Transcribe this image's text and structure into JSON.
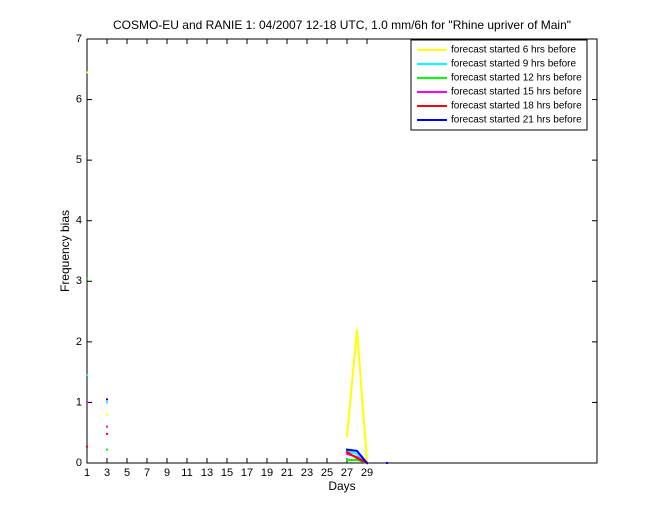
{
  "chart_data": {
    "type": "line",
    "title": "COSMO-EU and RANIE 1: 04/2007 12-18 UTC, 1.0 mm/6h for \"Rhine upriver of Main\"",
    "x_label": "Days",
    "y_label": "Frequency bias",
    "x": [
      1,
      2,
      3,
      26,
      27,
      28,
      29,
      30,
      31
    ],
    "series": [
      {
        "name": "forecast started 6 hrs before",
        "color": "#ffff00",
        "values": [
          6.45,
          null,
          0.8,
          null,
          0.45,
          2.2,
          0,
          null,
          null
        ]
      },
      {
        "name": "forecast started 9 hrs before",
        "color": "#00ffff",
        "values": [
          1.45,
          null,
          1.0,
          null,
          0.2,
          0.15,
          0,
          null,
          null
        ]
      },
      {
        "name": "forecast started 12 hrs before",
        "color": "#00ff00",
        "values": [
          3.05,
          null,
          0.22,
          null,
          0.05,
          0.05,
          0,
          null,
          null
        ]
      },
      {
        "name": "forecast started 15 hrs before",
        "color": "#ff00ff",
        "values": [
          1.0,
          null,
          0.6,
          null,
          0.15,
          0.1,
          0,
          null,
          null
        ]
      },
      {
        "name": "forecast started 18 hrs before",
        "color": "#ff0000",
        "values": [
          0.27,
          null,
          0.48,
          null,
          0.18,
          0.08,
          0,
          null,
          null
        ]
      },
      {
        "name": "forecast started 21 hrs before",
        "color": "#0000ff",
        "values": [
          null,
          null,
          1.05,
          null,
          0.22,
          0.2,
          0,
          null,
          0
        ]
      }
    ],
    "xlim": [
      1,
      52
    ],
    "ylim": [
      0,
      7
    ],
    "xticks": [
      1,
      3,
      5,
      7,
      9,
      11,
      13,
      15,
      17,
      19,
      21,
      23,
      25,
      27,
      29
    ],
    "yticks": [
      0,
      1,
      2,
      3,
      4,
      5,
      6,
      7
    ],
    "legend": "top-right"
  }
}
